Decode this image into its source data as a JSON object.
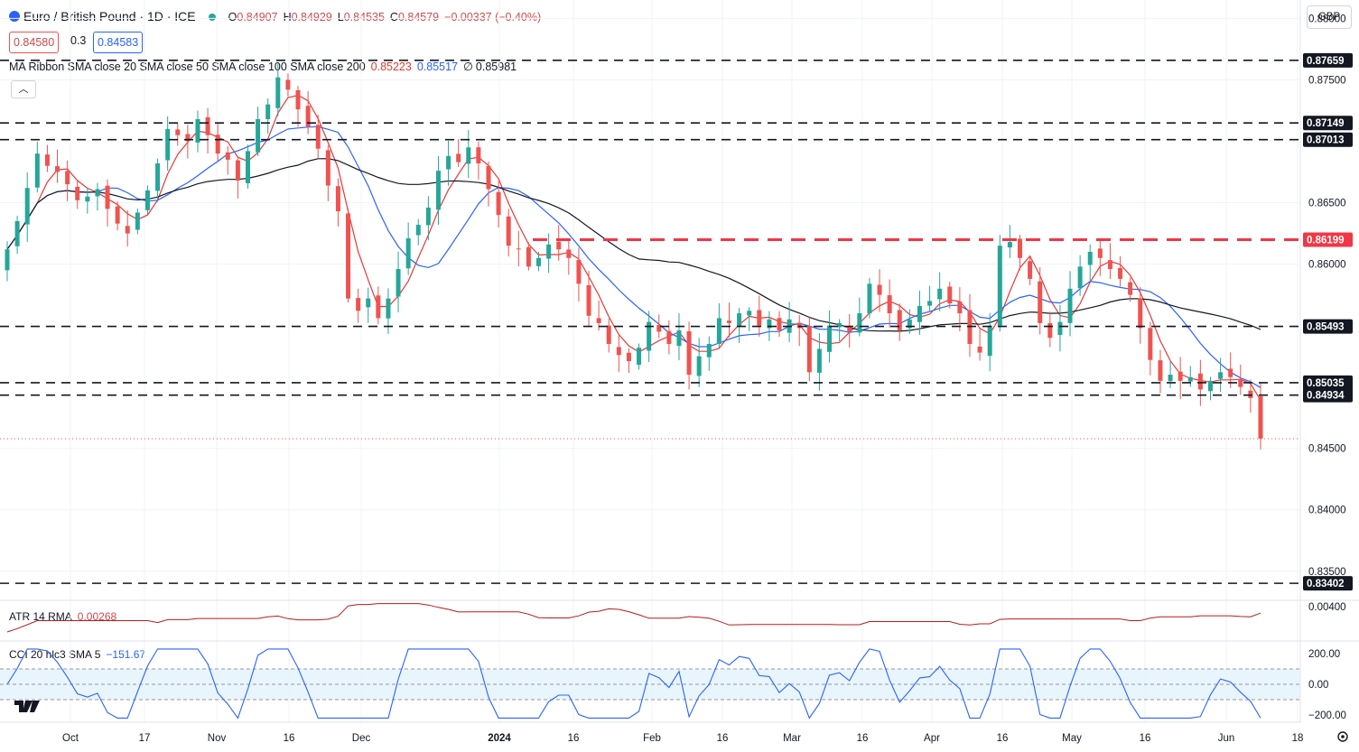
{
  "header": {
    "symbol": "Euro / British Pound · 1D · ICE",
    "open_label": "O",
    "open": "0.84907",
    "high_label": "H",
    "high": "0.84929",
    "low_label": "L",
    "low": "0.84535",
    "close_label": "C",
    "close": "0.84579",
    "change": "−0.00337 (−0.40%)",
    "sell_price": "0.84580",
    "spread": "0.3",
    "buy_price": "0.84583",
    "currency": "GBP",
    "collapse_icon": "chevron-up-icon"
  },
  "ma_legend": {
    "label": "MA Ribbon SMA close 20 SMA close 50 SMA close 100 SMA close 200",
    "v20": "0.85223",
    "v50": "0.85517",
    "v200_sep": "∅",
    "v200": "0.85981",
    "colors": {
      "sma20": "#e53935",
      "sma50": "#2962ff",
      "sma200": "#131722"
    }
  },
  "atr_legend": {
    "label": "ATR 14 RMA",
    "value": "0.00268",
    "color": "#b71c1c"
  },
  "cci_legend": {
    "label": "CCI 20 hlc3 SMA 5",
    "value": "−151.67",
    "color": "#2962ff"
  },
  "colors": {
    "up": "#26a69a",
    "down": "#ef5350",
    "level": "#131722",
    "level_red": "#f23645",
    "accent": "#2962ff"
  },
  "chart_data": {
    "type": "candlestick",
    "ylim": [
      0.833,
      0.8815
    ],
    "price_ticks": [
      "0.88000",
      "0.87500",
      "0.86500",
      "0.86000",
      "0.84500",
      "0.84000",
      "0.83500"
    ],
    "x_ticks": [
      "Oct",
      "17",
      "Nov",
      "16",
      "Dec",
      "2024",
      "16",
      "Feb",
      "16",
      "Mar",
      "16",
      "Apr",
      "16",
      "May",
      "16",
      "Jun",
      "18"
    ],
    "levels": [
      {
        "value": 0.87659,
        "label": "0.87659",
        "style": "dashed-black"
      },
      {
        "value": 0.87149,
        "label": "0.87149",
        "style": "dashed-black"
      },
      {
        "value": 0.87013,
        "label": "0.87013",
        "style": "dashed-black"
      },
      {
        "value": 0.86199,
        "label": "0.86199",
        "style": "dashed-red"
      },
      {
        "value": 0.85493,
        "label": "0.85493",
        "style": "dashed-black"
      },
      {
        "value": 0.85035,
        "label": "0.85035",
        "style": "dashed-black"
      },
      {
        "value": 0.84934,
        "label": "0.84934",
        "style": "dashed-black"
      },
      {
        "value": 0.83402,
        "label": "0.83402",
        "style": "dashed-black"
      }
    ],
    "current_price": 0.84579,
    "close_series": [
      0.8612,
      0.8635,
      0.8662,
      0.869,
      0.868,
      0.8675,
      0.8665,
      0.8652,
      0.8655,
      0.8661,
      0.8645,
      0.8633,
      0.8625,
      0.8642,
      0.866,
      0.8682,
      0.871,
      0.8705,
      0.87,
      0.8718,
      0.8705,
      0.869,
      0.8685,
      0.8668,
      0.8692,
      0.8718,
      0.873,
      0.8752,
      0.8742,
      0.8726,
      0.8712,
      0.8694,
      0.8664,
      0.8643,
      0.8572,
      0.8562,
      0.8572,
      0.8556,
      0.8572,
      0.8596,
      0.8621,
      0.8632,
      0.8646,
      0.8676,
      0.8688,
      0.8683,
      0.8695,
      0.8682,
      0.8661,
      0.864,
      0.8615,
      0.8612,
      0.8598,
      0.8605,
      0.8616,
      0.8612,
      0.8605,
      0.8584,
      0.8558,
      0.8552,
      0.8535,
      0.8526,
      0.8521,
      0.8532,
      0.8553,
      0.8545,
      0.8535,
      0.8546,
      0.851,
      0.8525,
      0.8535,
      0.8556,
      0.8552,
      0.856,
      0.8562,
      0.855,
      0.8555,
      0.8546,
      0.8555,
      0.8548,
      0.8512,
      0.8531,
      0.855,
      0.8552,
      0.8545,
      0.856,
      0.8584,
      0.8575,
      0.856,
      0.8546,
      0.8555,
      0.8566,
      0.857,
      0.858,
      0.8568,
      0.856,
      0.8535,
      0.8528,
      0.855,
      0.8615,
      0.8618,
      0.8605,
      0.8588,
      0.8552,
      0.854,
      0.8553,
      0.858,
      0.8598,
      0.861,
      0.8605,
      0.8596,
      0.8588,
      0.8575,
      0.8548,
      0.8522,
      0.8505,
      0.851,
      0.8505,
      0.8508,
      0.8498,
      0.8505,
      0.8512,
      0.8508,
      0.85,
      0.8491,
      0.8458
    ],
    "sma20": "drawn as a red moving-average line (current 0.85223)",
    "sma50": "drawn as a blue moving-average line (current 0.85517)",
    "sma200": "drawn as a black moving-average line (current 0.85981)",
    "atr": {
      "ticks": [
        "0.00400"
      ],
      "current": 0.00268
    },
    "cci": {
      "ticks": [
        "200.00",
        "0.00",
        "−200.00"
      ],
      "band": [
        -100,
        100
      ],
      "current": -151.67
    }
  }
}
